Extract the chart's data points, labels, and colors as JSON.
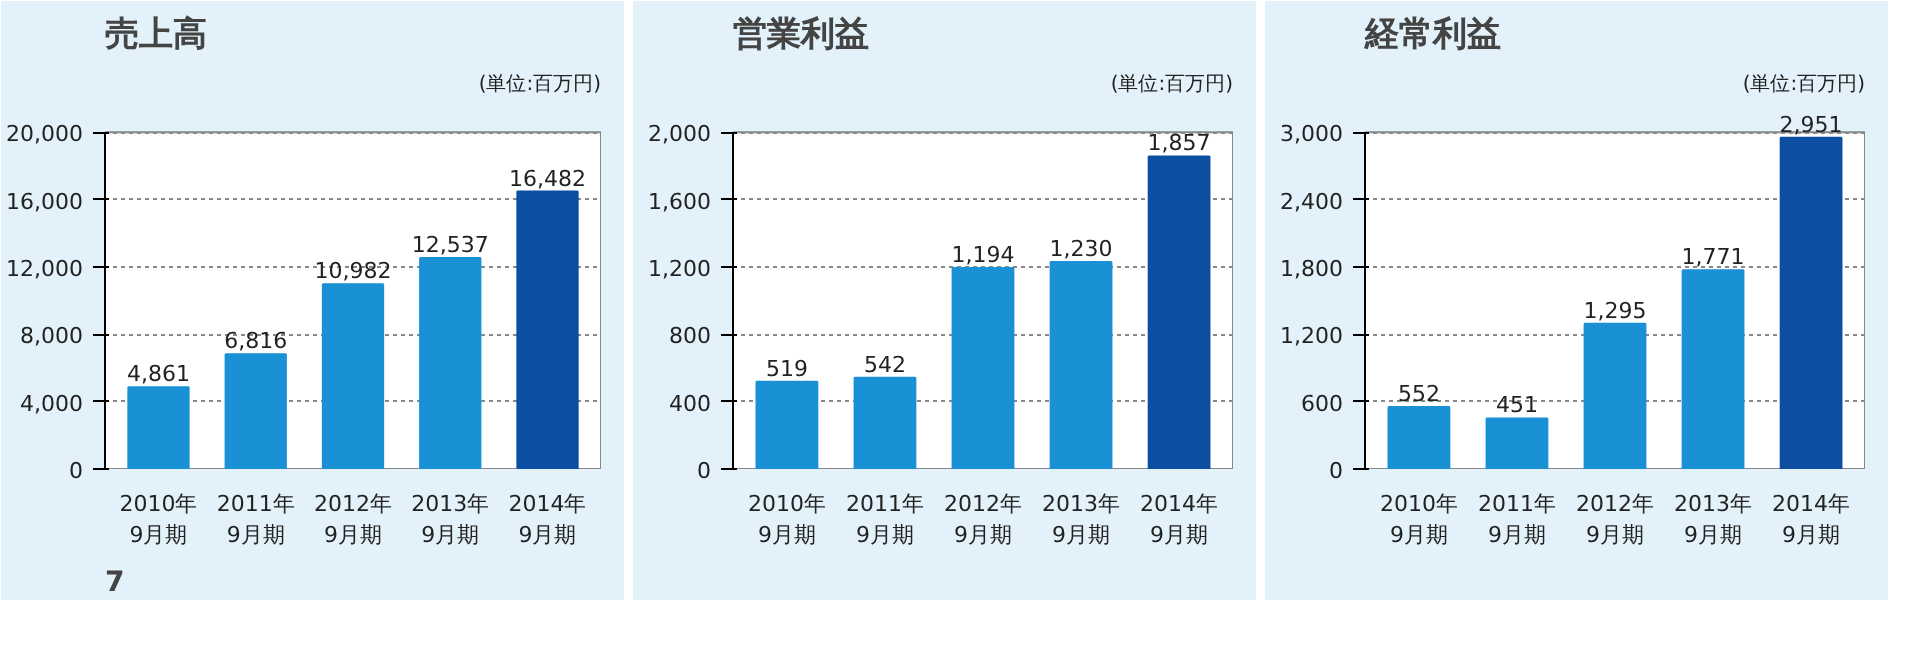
{
  "chart_data": [
    {
      "type": "bar",
      "title": "売上高",
      "subtitle": "(単位:百万円)",
      "categories": [
        "2010年\n9月期",
        "2011年\n9月期",
        "2012年\n9月期",
        "2013年\n9月期",
        "2014年\n9月期"
      ],
      "values": [
        4861,
        6816,
        10982,
        12537,
        16482
      ],
      "value_labels": [
        "4,861",
        "6,816",
        "10,982",
        "12,537",
        "16,482"
      ],
      "colors": [
        "#1a90d5",
        "#1a90d5",
        "#1a90d5",
        "#1a90d5",
        "#0b4ea2"
      ],
      "ylim": [
        0,
        20000
      ],
      "yticks": [
        0,
        {
          "value": 4000,
          "label": "4,000"
        },
        {
          "value": 8000,
          "label": "8,000"
        },
        {
          "value": 12000,
          "label": "12,000"
        },
        {
          "value": 16000,
          "label": "16,000"
        },
        {
          "value": 20000,
          "label": "20,000"
        }
      ],
      "grid": "y",
      "data_labels": true,
      "annotations": [
        "7"
      ]
    },
    {
      "type": "bar",
      "title": "営業利益",
      "subtitle": "(単位:百万円)",
      "categories": [
        "2010年\n9月期",
        "2011年\n9月期",
        "2012年\n9月期",
        "2013年\n9月期",
        "2014年\n9月期"
      ],
      "values": [
        519,
        542,
        1194,
        1230,
        1857
      ],
      "value_labels": [
        "519",
        "542",
        "1,194",
        "1,230",
        "1,857"
      ],
      "colors": [
        "#1a90d5",
        "#1a90d5",
        "#1a90d5",
        "#1a90d5",
        "#0b4ea2"
      ],
      "ylim": [
        0,
        2000
      ],
      "yticks": [
        0,
        400,
        800,
        {
          "value": 1200,
          "label": "1,200"
        },
        {
          "value": 1600,
          "label": "1,600"
        },
        {
          "value": 2000,
          "label": "2,000"
        }
      ],
      "grid": "y",
      "data_labels": true
    },
    {
      "type": "bar",
      "title": "経常利益",
      "subtitle": "(単位:百万円)",
      "categories": [
        "2010年\n9月期",
        "2011年\n9月期",
        "2012年\n9月期",
        "2013年\n9月期",
        "2014年\n9月期"
      ],
      "values": [
        552,
        451,
        1295,
        1771,
        2951
      ],
      "value_labels": [
        "552",
        "451",
        "1,295",
        "1,771",
        "2,951"
      ],
      "colors": [
        "#1a90d5",
        "#1a90d5",
        "#1a90d5",
        "#1a90d5",
        "#0b4ea2"
      ],
      "ylim": [
        0,
        3000
      ],
      "yticks": [
        0,
        600,
        {
          "value": 1200,
          "label": "1,200"
        },
        {
          "value": 1800,
          "label": "1,800"
        },
        {
          "value": 2400,
          "label": "2,400"
        },
        {
          "value": 3000,
          "label": "3,000"
        }
      ],
      "grid": "y",
      "data_labels": true
    }
  ]
}
